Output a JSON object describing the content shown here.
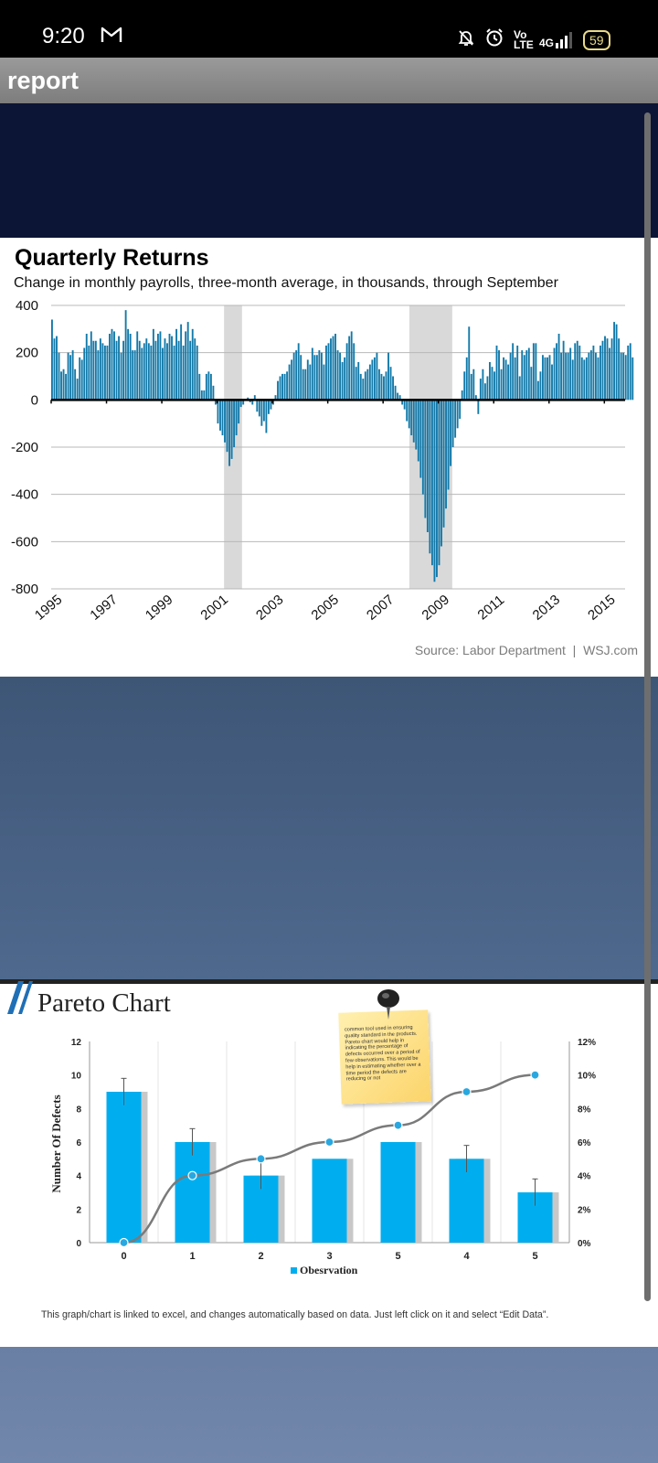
{
  "status_bar": {
    "time": "9:20",
    "network_label": "4G",
    "volte_label": "Vo LTE",
    "battery": "59"
  },
  "app_bar": {
    "title": "report"
  },
  "quarterly_slide": {
    "title": "Quarterly Returns",
    "subtitle": "Change in monthly payrolls, three-month average, in thousands, through September",
    "source": "Source: Labor Department  |  WSJ.com",
    "chart_data": {
      "type": "bar",
      "title": "Quarterly Returns",
      "subtitle": "Change in monthly payrolls, three-month average, in thousands, through September",
      "xlabel": "",
      "ylabel": "",
      "ylim": [
        -800,
        400
      ],
      "yticks": [
        "400",
        "200",
        "0",
        "-200",
        "-400",
        "-600",
        "-800"
      ],
      "xticks": [
        "1995",
        "1997",
        "1999",
        "2001",
        "2003",
        "2005",
        "2007",
        "2009",
        "2011",
        "2013",
        "2015"
      ],
      "x_range": [
        1995.0,
        2015.75
      ],
      "recession_bands": [
        [
          2001.25,
          2001.9
        ],
        [
          2007.95,
          2009.5
        ]
      ],
      "color": "#1279a9",
      "series": [
        {
          "start": 1995.0,
          "step": 0.0833,
          "values": [
            340,
            260,
            270,
            200,
            120,
            130,
            110,
            200,
            190,
            210,
            130,
            90,
            180,
            170,
            220,
            280,
            230,
            290,
            250,
            250,
            210,
            260,
            240,
            230,
            230,
            280,
            300,
            290,
            250,
            270,
            200,
            250,
            380,
            300,
            280,
            210,
            210,
            290,
            250,
            220,
            240,
            260,
            240,
            230,
            300,
            250,
            280,
            290,
            220,
            260,
            240,
            280,
            270,
            230,
            300,
            250,
            320,
            230,
            290,
            330,
            250,
            300,
            260,
            230,
            110,
            40,
            40,
            110,
            120,
            110,
            60,
            -20,
            -100,
            -130,
            -150,
            -180,
            -220,
            -280,
            -250,
            -200,
            -150,
            -100,
            -30,
            -20,
            0,
            10,
            -10,
            -20,
            20,
            -50,
            -70,
            -110,
            -90,
            -140,
            -60,
            -40,
            -20,
            20,
            80,
            100,
            110,
            110,
            120,
            150,
            170,
            200,
            210,
            240,
            190,
            130,
            130,
            170,
            150,
            220,
            190,
            190,
            210,
            200,
            150,
            230,
            240,
            260,
            270,
            280,
            210,
            200,
            160,
            180,
            240,
            270,
            290,
            240,
            140,
            160,
            110,
            90,
            120,
            130,
            150,
            170,
            180,
            200,
            130,
            110,
            100,
            120,
            200,
            140,
            100,
            60,
            30,
            20,
            -20,
            -40,
            -90,
            -120,
            -150,
            -180,
            -210,
            -260,
            -330,
            -400,
            -500,
            -560,
            -650,
            -700,
            -770,
            -750,
            -700,
            -620,
            -540,
            -460,
            -380,
            -280,
            -200,
            -160,
            -120,
            -80,
            40,
            120,
            180,
            310,
            110,
            130,
            20,
            -60,
            90,
            130,
            70,
            100,
            160,
            140,
            120,
            230,
            210,
            130,
            180,
            170,
            150,
            200,
            240,
            180,
            230,
            100,
            210,
            190,
            210,
            220,
            140,
            240,
            240,
            80,
            120,
            190,
            180,
            180,
            190,
            150,
            220,
            240,
            280,
            200,
            250,
            200,
            200,
            220,
            170,
            240,
            250,
            230,
            180,
            170,
            180,
            200,
            210,
            230,
            200,
            180,
            230,
            250,
            270,
            260,
            220,
            260,
            330,
            320,
            260,
            200,
            200,
            190,
            230,
            240,
            180
          ]
        }
      ]
    }
  },
  "pareto_slide": {
    "title": "Pareto Chart",
    "note": "common tool used in ensuring quality standard in the products. Pareto chart would help in indicating the percentage of defects occurred over a period of few observations. This would be help in estimating whether over a time period the defects are reducing or not",
    "footer": "This graph/chart is linked to excel, and changes automatically based on data. Just left click on it and select “Edit Data”.",
    "chart_data": {
      "type": "bar",
      "categories": [
        "0",
        "1",
        "2",
        "3",
        "5",
        "4",
        "5"
      ],
      "ylabel": "Number Of Defects",
      "ylim": [
        0,
        12
      ],
      "yticks": [
        "0",
        "2",
        "4",
        "6",
        "8",
        "10",
        "12"
      ],
      "y2ticks": [
        "0%",
        "2%",
        "4%",
        "6%",
        "8%",
        "10%",
        "12%"
      ],
      "y2lim": [
        0,
        12
      ],
      "legend_position": "bottom",
      "series": [
        {
          "name": "Obesrvation",
          "kind": "bar",
          "values": [
            9,
            6,
            4,
            5,
            6,
            5,
            3
          ],
          "errors": [
            0.8,
            0.8,
            0.8,
            0,
            0,
            0.8,
            0.8
          ],
          "color": "#00aeef"
        },
        {
          "kind": "line",
          "axis": "right",
          "values": [
            0,
            4,
            5,
            6,
            7,
            9,
            10
          ],
          "color": "#7a7a7a",
          "marker_color": "#29a8e0"
        }
      ]
    }
  }
}
